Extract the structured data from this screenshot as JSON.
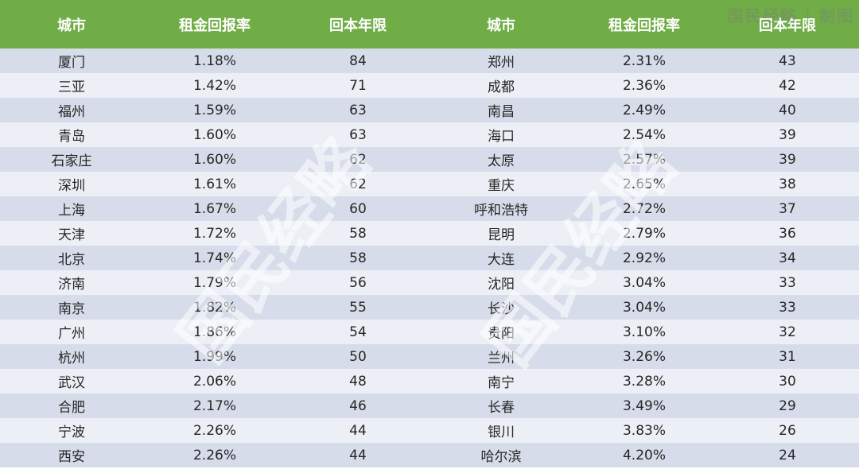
{
  "watermark": "国民经略 | 制图",
  "watermark_big": "国民经略",
  "headers": [
    "城市",
    "租金回报率",
    "回本年限",
    "城市",
    "租金回报率",
    "回本年限"
  ],
  "chart_data": {
    "type": "table",
    "columns": [
      "城市",
      "租金回报率",
      "回本年限"
    ],
    "rows": [
      [
        "厦门",
        "1.18%",
        "84"
      ],
      [
        "三亚",
        "1.42%",
        "71"
      ],
      [
        "福州",
        "1.59%",
        "63"
      ],
      [
        "青岛",
        "1.60%",
        "63"
      ],
      [
        "石家庄",
        "1.60%",
        "62"
      ],
      [
        "深圳",
        "1.61%",
        "62"
      ],
      [
        "上海",
        "1.67%",
        "60"
      ],
      [
        "天津",
        "1.72%",
        "58"
      ],
      [
        "北京",
        "1.74%",
        "58"
      ],
      [
        "济南",
        "1.79%",
        "56"
      ],
      [
        "南京",
        "1.82%",
        "55"
      ],
      [
        "广州",
        "1.86%",
        "54"
      ],
      [
        "杭州",
        "1.99%",
        "50"
      ],
      [
        "武汉",
        "2.06%",
        "48"
      ],
      [
        "合肥",
        "2.17%",
        "46"
      ],
      [
        "宁波",
        "2.26%",
        "44"
      ],
      [
        "西安",
        "2.26%",
        "44"
      ],
      [
        "郑州",
        "2.31%",
        "43"
      ],
      [
        "成都",
        "2.36%",
        "42"
      ],
      [
        "南昌",
        "2.49%",
        "40"
      ],
      [
        "海口",
        "2.54%",
        "39"
      ],
      [
        "太原",
        "2.57%",
        "39"
      ],
      [
        "重庆",
        "2.65%",
        "38"
      ],
      [
        "呼和浩特",
        "2.72%",
        "37"
      ],
      [
        "昆明",
        "2.79%",
        "36"
      ],
      [
        "大连",
        "2.92%",
        "34"
      ],
      [
        "沈阳",
        "3.04%",
        "33"
      ],
      [
        "长沙",
        "3.04%",
        "33"
      ],
      [
        "贵阳",
        "3.10%",
        "32"
      ],
      [
        "兰州",
        "3.26%",
        "31"
      ],
      [
        "南宁",
        "3.28%",
        "30"
      ],
      [
        "长春",
        "3.49%",
        "29"
      ],
      [
        "银川",
        "3.83%",
        "26"
      ],
      [
        "哈尔滨",
        "4.20%",
        "24"
      ]
    ]
  }
}
